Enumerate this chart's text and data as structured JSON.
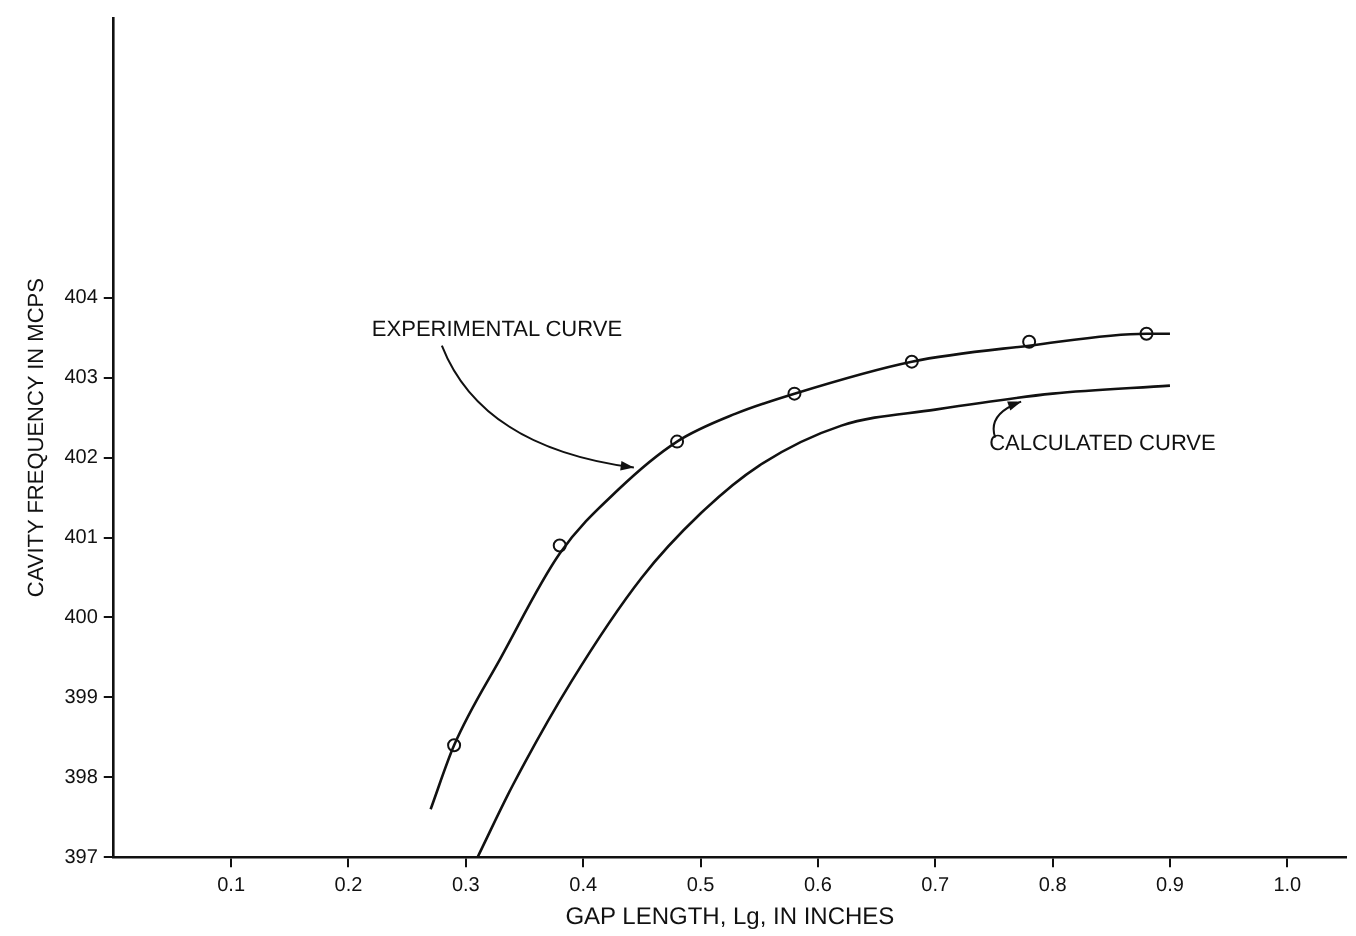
{
  "chart_data": {
    "type": "line",
    "xlabel": "GAP LENGTH, Lg, IN INCHES",
    "ylabel": "CAVITY FREQUENCY IN MCPS",
    "series": [
      {
        "marker": "none",
        "color": "#111111",
        "x": [
          0.27,
          0.29,
          0.33,
          0.38,
          0.43,
          0.48,
          0.53,
          0.58,
          0.68,
          0.78,
          0.88,
          0.9
        ],
        "values": [
          397.6,
          398.4,
          399.5,
          400.8,
          401.6,
          402.2,
          402.55,
          402.8,
          403.2,
          403.4,
          403.55,
          403.55
        ]
      },
      {
        "type": "scatter",
        "marker": "circle",
        "color": "#111111",
        "x": [
          0.29,
          0.38,
          0.48,
          0.58,
          0.68,
          0.78,
          0.88
        ],
        "values": [
          398.4,
          400.9,
          402.2,
          402.8,
          403.2,
          403.45,
          403.55
        ]
      },
      {
        "marker": "none",
        "color": "#111111",
        "x": [
          0.31,
          0.34,
          0.39,
          0.45,
          0.5,
          0.55,
          0.62,
          0.7,
          0.8,
          0.9
        ],
        "values": [
          397.0,
          397.9,
          399.2,
          400.5,
          401.3,
          401.9,
          402.4,
          402.6,
          402.8,
          402.9
        ]
      }
    ],
    "annotations": [
      {
        "text": "EXPERIMENTAL CURVE",
        "x": 0.45,
        "y": 401.9
      },
      {
        "text": "CALCULATED CURVE",
        "x": 0.78,
        "y": 402.8
      }
    ],
    "xlim": [
      0,
      1.05
    ],
    "xticks": [
      0.1,
      0.2,
      0.3,
      0.4,
      0.5,
      0.6,
      0.7,
      0.8,
      0.9,
      {
        "value": 1.0,
        "label": "1.0"
      }
    ],
    "ylim": [
      397,
      407.5
    ],
    "yticks": [
      397,
      398,
      399,
      400,
      401,
      402,
      403,
      404
    ],
    "grid": false,
    "legend": false
  }
}
